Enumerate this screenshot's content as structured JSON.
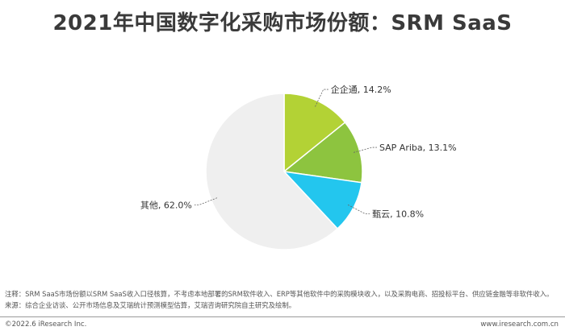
{
  "page": {
    "title": "2021年中国数字化采购市场份额：SRM SaaS",
    "note_line1": "注释：SRM SaaS市场份额以SRM SaaS收入口径核算，不考虑本地部署的SRM软件收入、ERP等其他软件中的采购模块收入，以及采购电商、招投标平台、供应链金融等非软件收入。",
    "note_line2": "来源：综合企业访谈、公开市场信息及艾瑞统计预测模型估算，艾瑞咨询研究院自主研究及绘制。",
    "footer_left": "©2022.6 iResearch Inc.",
    "footer_right": "www.iresearch.com.cn"
  },
  "chart_data": {
    "type": "pie",
    "title": "2021年中国数字化采购市场份额：SRM SaaS",
    "start_angle": "12 o'clock",
    "direction": "clockwise",
    "slices": [
      {
        "name": "企企通",
        "value": 14.2,
        "label": "企企通, 14.2%",
        "color": "#b3d235"
      },
      {
        "name": "SAP Ariba",
        "value": 13.1,
        "label": "SAP Ariba, 13.1%",
        "color": "#8dc43f"
      },
      {
        "name": "甄云",
        "value": 10.8,
        "label": "甄云, 10.8%",
        "color": "#23c6ee"
      },
      {
        "name": "其他",
        "value": 62.0,
        "label": "其他, 62.0%",
        "color": "#efefef"
      }
    ]
  }
}
